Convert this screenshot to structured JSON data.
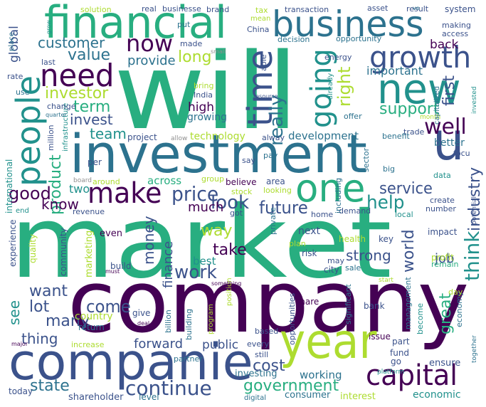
{
  "palette": {
    "dark-purple": "#440154",
    "indigo": "#3b528b",
    "steel-blue": "#2c728e",
    "teal": "#21918c",
    "green": "#28ae80",
    "lime": "#5ec962",
    "yellow-green": "#addc30",
    "gray": "#8f8f8f"
  },
  "words": [
    {
      "text": "will",
      "color": "green"
    },
    {
      "text": "market",
      "color": "green"
    },
    {
      "text": "company",
      "color": "dark-purple"
    },
    {
      "text": "investment",
      "color": "steel-blue"
    },
    {
      "text": "companie",
      "color": "indigo"
    },
    {
      "text": "financial",
      "color": "green"
    },
    {
      "text": "business",
      "color": "steel-blue"
    },
    {
      "text": "year",
      "color": "yellow-green"
    },
    {
      "text": "growth",
      "color": "indigo"
    },
    {
      "text": "need",
      "color": "dark-purple"
    },
    {
      "text": "people",
      "color": "teal"
    },
    {
      "text": "new",
      "color": "teal"
    },
    {
      "text": "one",
      "color": "green"
    },
    {
      "text": "make",
      "color": "dark-purple"
    },
    {
      "text": "capital",
      "color": "dark-purple"
    },
    {
      "text": "u",
      "color": "indigo"
    },
    {
      "text": "time",
      "color": "indigo"
    },
    {
      "text": "going",
      "color": "teal"
    },
    {
      "text": "now",
      "color": "dark-purple"
    },
    {
      "text": "continue",
      "color": "indigo"
    },
    {
      "text": "well",
      "color": "dark-purple"
    },
    {
      "text": "customer",
      "color": "steel-blue"
    },
    {
      "text": "price",
      "color": "indigo"
    },
    {
      "text": "look",
      "color": "indigo"
    },
    {
      "text": "future",
      "color": "indigo"
    },
    {
      "text": "service",
      "color": "indigo"
    },
    {
      "text": "help",
      "color": "teal"
    },
    {
      "text": "think",
      "color": "teal"
    },
    {
      "text": "work",
      "color": "indigo"
    },
    {
      "text": "government",
      "color": "green"
    },
    {
      "text": "state",
      "color": "steel-blue"
    },
    {
      "text": "come",
      "color": "indigo"
    },
    {
      "text": "want",
      "color": "indigo"
    },
    {
      "text": "lot",
      "color": "indigo"
    },
    {
      "text": "many",
      "color": "indigo"
    },
    {
      "text": "take",
      "color": "dark-purple"
    },
    {
      "text": "way",
      "color": "yellow-green"
    },
    {
      "text": "right",
      "color": "yellow-green"
    },
    {
      "text": "really",
      "color": "steel-blue"
    },
    {
      "text": "support",
      "color": "green"
    },
    {
      "text": "value",
      "color": "steel-blue"
    },
    {
      "text": "long",
      "color": "yellow-green"
    },
    {
      "text": "investor",
      "color": "yellow-green"
    },
    {
      "text": "term",
      "color": "green"
    },
    {
      "text": "team",
      "color": "teal"
    },
    {
      "text": "invest",
      "color": "indigo"
    },
    {
      "text": "product",
      "color": "green"
    },
    {
      "text": "good",
      "color": "dark-purple"
    },
    {
      "text": "know",
      "color": "dark-purple"
    },
    {
      "text": "industry",
      "color": "indigo"
    },
    {
      "text": "world",
      "color": "indigo"
    },
    {
      "text": "strong",
      "color": "indigo"
    },
    {
      "text": "money",
      "color": "indigo"
    },
    {
      "text": "finance",
      "color": "indigo"
    },
    {
      "text": "thing",
      "color": "indigo"
    },
    {
      "text": "see",
      "color": "teal"
    },
    {
      "text": "great",
      "color": "green"
    },
    {
      "text": "first",
      "color": "indigo"
    },
    {
      "text": "important",
      "color": "steel-blue"
    },
    {
      "text": "job",
      "color": "indigo"
    },
    {
      "text": "cost",
      "color": "indigo"
    },
    {
      "text": "forward",
      "color": "indigo"
    },
    {
      "text": "high",
      "color": "dark-purple"
    },
    {
      "text": "provide",
      "color": "steel-blue"
    },
    {
      "text": "much",
      "color": "dark-purple"
    },
    {
      "text": "two",
      "color": "teal"
    },
    {
      "text": "global",
      "color": "indigo"
    },
    {
      "text": "back",
      "color": "dark-purple"
    },
    {
      "text": "development",
      "color": "steel-blue"
    },
    {
      "text": "technology",
      "color": "yellow-green"
    },
    {
      "text": "growing",
      "color": "steel-blue"
    },
    {
      "text": "across",
      "color": "green"
    },
    {
      "text": "better",
      "color": "steel-blue"
    },
    {
      "text": "public",
      "color": "indigo"
    },
    {
      "text": "working",
      "color": "steel-blue"
    },
    {
      "text": "economic",
      "color": "teal"
    },
    {
      "text": "ensure",
      "color": "indigo"
    },
    {
      "text": "investing",
      "color": "steel-blue"
    },
    {
      "text": "shareholder",
      "color": "indigo"
    },
    {
      "text": "level",
      "color": "steel-blue"
    },
    {
      "text": "consumer",
      "color": "steel-blue"
    },
    {
      "text": "interest",
      "color": "yellow-green"
    },
    {
      "text": "today",
      "color": "indigo"
    },
    {
      "text": "digital",
      "color": "steel-blue"
    },
    {
      "text": "international",
      "color": "teal"
    },
    {
      "text": "experience",
      "color": "indigo"
    },
    {
      "text": "community",
      "color": "indigo"
    },
    {
      "text": "marketing",
      "color": "yellow-green"
    },
    {
      "text": "quality",
      "color": "yellow-green"
    },
    {
      "text": "even",
      "color": "dark-purple"
    },
    {
      "text": "build",
      "color": "indigo"
    },
    {
      "text": "best",
      "color": "teal"
    },
    {
      "text": "country",
      "color": "yellow-green"
    },
    {
      "text": "give",
      "color": "indigo"
    },
    {
      "text": "return",
      "color": "steel-blue"
    },
    {
      "text": "increase",
      "color": "yellow-green"
    },
    {
      "text": "partner",
      "color": "steel-blue"
    },
    {
      "text": "billion",
      "color": "steel-blue"
    },
    {
      "text": "building",
      "color": "steel-blue"
    },
    {
      "text": "program",
      "color": "yellow-green"
    },
    {
      "text": "position",
      "color": "yellow-green"
    },
    {
      "text": "every",
      "color": "indigo"
    },
    {
      "text": "still",
      "color": "indigo"
    },
    {
      "text": "based",
      "color": "indigo"
    },
    {
      "text": "share",
      "color": "dark-purple"
    },
    {
      "text": "bank",
      "color": "indigo"
    },
    {
      "text": "issue",
      "color": "dark-purple"
    },
    {
      "text": "opportunities",
      "color": "indigo"
    },
    {
      "text": "significant",
      "color": "steel-blue"
    },
    {
      "text": "management",
      "color": "steel-blue"
    },
    {
      "text": "become",
      "color": "teal"
    },
    {
      "text": "economy",
      "color": "steel-blue"
    },
    {
      "text": "together",
      "color": "steel-blue"
    },
    {
      "text": "platform",
      "color": "teal"
    },
    {
      "text": "fund",
      "color": "indigo"
    },
    {
      "text": "go",
      "color": "indigo"
    },
    {
      "text": "part",
      "color": "indigo"
    },
    {
      "text": "sale",
      "color": "steel-blue"
    },
    {
      "text": "city",
      "color": "indigo"
    },
    {
      "text": "may",
      "color": "indigo"
    },
    {
      "text": "risk",
      "color": "indigo"
    },
    {
      "text": "plan",
      "color": "yellow-green"
    },
    {
      "text": "next",
      "color": "indigo"
    },
    {
      "text": "health",
      "color": "yellow-green"
    },
    {
      "text": "key",
      "color": "indigo"
    },
    {
      "text": "home",
      "color": "indigo"
    },
    {
      "text": "demand",
      "color": "indigo"
    },
    {
      "text": "private",
      "color": "steel-blue"
    },
    {
      "text": "got",
      "color": "indigo"
    },
    {
      "text": "stock",
      "color": "yellow-green"
    },
    {
      "text": "looking",
      "color": "yellow-green"
    },
    {
      "text": "believe",
      "color": "dark-purple"
    },
    {
      "text": "including",
      "color": "steel-blue"
    },
    {
      "text": "area",
      "color": "indigo"
    },
    {
      "text": "group",
      "color": "yellow-green"
    },
    {
      "text": "sector",
      "color": "steel-blue"
    },
    {
      "text": "big",
      "color": "steel-blue"
    },
    {
      "text": "data",
      "color": "teal"
    },
    {
      "text": "focu",
      "color": "indigo"
    },
    {
      "text": "trade",
      "color": "indigo"
    },
    {
      "text": "benefit",
      "color": "steel-blue"
    },
    {
      "text": "month",
      "color": "yellow-green"
    },
    {
      "text": "offer",
      "color": "steel-blue"
    },
    {
      "text": "potential",
      "color": "indigo"
    },
    {
      "text": "local",
      "color": "teal"
    },
    {
      "text": "number",
      "color": "indigo"
    },
    {
      "text": "create",
      "color": "indigo"
    },
    {
      "text": "impact",
      "color": "indigo"
    },
    {
      "text": "profit",
      "color": "yellow-green"
    },
    {
      "text": "remain",
      "color": "green"
    },
    {
      "text": "day",
      "color": "yellow-green"
    },
    {
      "text": "start",
      "color": "yellow-green"
    },
    {
      "text": "project",
      "color": "indigo"
    },
    {
      "text": "allow",
      "color": "gray"
    },
    {
      "text": "million",
      "color": "indigo"
    },
    {
      "text": "infrastructure",
      "color": "teal"
    },
    {
      "text": "per",
      "color": "indigo"
    },
    {
      "text": "board",
      "color": "gray"
    },
    {
      "text": "around",
      "color": "yellow-green"
    },
    {
      "text": "revenue",
      "color": "indigo"
    },
    {
      "text": "end",
      "color": "teal"
    },
    {
      "text": "pay",
      "color": "steel-blue"
    },
    {
      "text": "say",
      "color": "indigo"
    },
    {
      "text": "alway",
      "color": "indigo"
    },
    {
      "text": "India",
      "color": "indigo"
    },
    {
      "text": "bring",
      "color": "yellow-green"
    },
    {
      "text": "made",
      "color": "indigo"
    },
    {
      "text": "small",
      "color": "gray"
    },
    {
      "text": "put",
      "color": "steel-blue"
    },
    {
      "text": "real",
      "color": "indigo"
    },
    {
      "text": "businesse",
      "color": "indigo"
    },
    {
      "text": "brand",
      "color": "indigo"
    },
    {
      "text": "tax",
      "color": "yellow-green"
    },
    {
      "text": "mean",
      "color": "yellow-green"
    },
    {
      "text": "China",
      "color": "indigo"
    },
    {
      "text": "transaction",
      "color": "indigo"
    },
    {
      "text": "asset",
      "color": "indigo"
    },
    {
      "text": "result",
      "color": "indigo"
    },
    {
      "text": "system",
      "color": "indigo"
    },
    {
      "text": "decision",
      "color": "steel-blue"
    },
    {
      "text": "opportunity",
      "color": "steel-blue"
    },
    {
      "text": "making",
      "color": "indigo"
    },
    {
      "text": "access",
      "color": "indigo"
    },
    {
      "text": "energy",
      "color": "indigo"
    },
    {
      "text": "already",
      "color": "teal"
    },
    {
      "text": "capitalized",
      "color": "steel-blue"
    },
    {
      "text": "invested",
      "color": "teal"
    },
    {
      "text": "solution",
      "color": "yellow-green"
    },
    {
      "text": "grow",
      "color": "teal"
    },
    {
      "text": "place",
      "color": "steel-blue"
    },
    {
      "text": "last",
      "color": "indigo"
    },
    {
      "text": "rate",
      "color": "indigo"
    },
    {
      "text": "use",
      "color": "steel-blue"
    },
    {
      "text": "change",
      "color": "indigo"
    },
    {
      "text": "quarter",
      "color": "steel-blue"
    },
    {
      "text": "able",
      "color": "indigo"
    },
    {
      "text": "resource",
      "color": "indigo"
    },
    {
      "text": "something",
      "color": "dark-purple"
    },
    {
      "text": "must",
      "color": "dark-purple"
    },
    {
      "text": "deal",
      "color": "dark-purple"
    },
    {
      "text": "major",
      "color": "dark-purple"
    },
    {
      "text": "ve",
      "color": "steel-blue"
    }
  ]
}
